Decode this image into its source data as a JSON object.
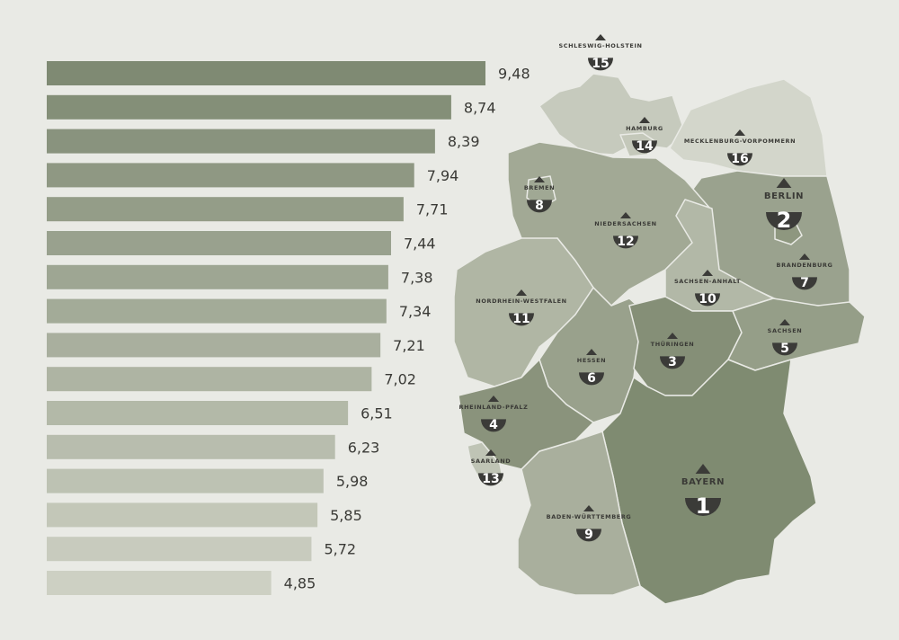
{
  "chart_data": {
    "type": "bar",
    "orientation": "horizontal",
    "values": [
      9.48,
      8.74,
      8.39,
      7.94,
      7.71,
      7.44,
      7.38,
      7.34,
      7.21,
      7.02,
      6.51,
      6.23,
      5.98,
      5.85,
      5.72,
      4.85
    ],
    "value_labels": [
      "9,48",
      "8,74",
      "8,39",
      "7,94",
      "7,71",
      "7,44",
      "7,38",
      "7,34",
      "7,21",
      "7,02",
      "6,51",
      "6,23",
      "5,98",
      "5,85",
      "5,72",
      "4,85"
    ],
    "xlim": [
      0,
      9.48
    ],
    "grid": false,
    "bar_color_dark": "#7f8a73",
    "bar_color_light": "#cdd0c3"
  },
  "map": {
    "background": "#e9eae5",
    "marker_color": "#3b3b38",
    "states": [
      {
        "name": "BAYERN",
        "rank": "1",
        "color": "#7f8b71"
      },
      {
        "name": "BERLIN",
        "rank": "2",
        "color": "#8e977f"
      },
      {
        "name": "THÜRINGEN",
        "rank": "3",
        "color": "#858f77"
      },
      {
        "name": "RHEINLAND-PFALZ",
        "rank": "4",
        "color": "#8a937c"
      },
      {
        "name": "SACHSEN",
        "rank": "5",
        "color": "#959e88"
      },
      {
        "name": "HESSEN",
        "rank": "6",
        "color": "#99a18c"
      },
      {
        "name": "BRANDENBURG",
        "rank": "7",
        "color": "#9aa28e"
      },
      {
        "name": "BREMEN",
        "rank": "8",
        "color": "#a0a894"
      },
      {
        "name": "BADEN-WÜRTTEMBERG",
        "rank": "9",
        "color": "#a9af9d"
      },
      {
        "name": "SACHSEN-ANHALT",
        "rank": "10",
        "color": "#b2b8a7"
      },
      {
        "name": "NORDRHEIN-WESTFALEN",
        "rank": "11",
        "color": "#b0b6a4"
      },
      {
        "name": "NIEDERSACHSEN",
        "rank": "12",
        "color": "#a2a995"
      },
      {
        "name": "SAARLAND",
        "rank": "13",
        "color": "#bfc4b5"
      },
      {
        "name": "HAMBURG",
        "rank": "14",
        "color": "#c4c8ba"
      },
      {
        "name": "SCHLESWIG-HOLSTEIN",
        "rank": "15",
        "color": "#c6cabd"
      },
      {
        "name": "MECKLENBURG-VORPOMMERN",
        "rank": "16",
        "color": "#d3d6cb"
      }
    ]
  }
}
